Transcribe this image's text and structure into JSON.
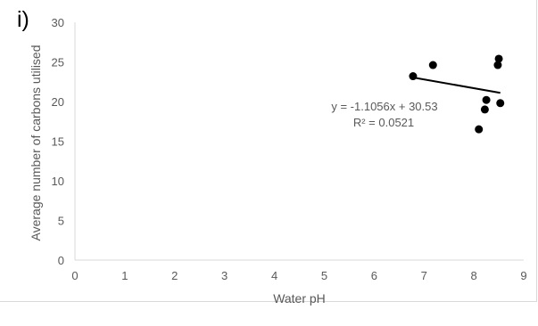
{
  "panel_label": "i)",
  "chart_data": {
    "type": "scatter",
    "title": "",
    "xlabel": "Water pH",
    "ylabel": "Average number of carbons utilised",
    "xlim": [
      0,
      9
    ],
    "ylim": [
      0,
      30
    ],
    "x_ticks": [
      "0",
      "1",
      "2",
      "3",
      "4",
      "5",
      "6",
      "7",
      "8",
      "9"
    ],
    "y_ticks": [
      "0",
      "5",
      "10",
      "15",
      "20",
      "25",
      "30"
    ],
    "grid": false,
    "legend": "none",
    "series": [
      {
        "points": [
          {
            "x": 6.78,
            "y": 23.2
          },
          {
            "x": 7.18,
            "y": 24.6
          },
          {
            "x": 8.1,
            "y": 16.5
          },
          {
            "x": 8.22,
            "y": 19.0
          },
          {
            "x": 8.25,
            "y": 20.2
          },
          {
            "x": 8.48,
            "y": 24.6
          },
          {
            "x": 8.5,
            "y": 25.4
          },
          {
            "x": 8.53,
            "y": 19.8
          }
        ],
        "color": "#000000"
      }
    ],
    "trendline": {
      "slope": -1.1056,
      "intercept": 30.53,
      "x_range": [
        6.78,
        8.53
      ],
      "equation": "y = -1.1056x + 30.53",
      "r_squared": "R² = 0.0521",
      "color": "#000000"
    }
  }
}
